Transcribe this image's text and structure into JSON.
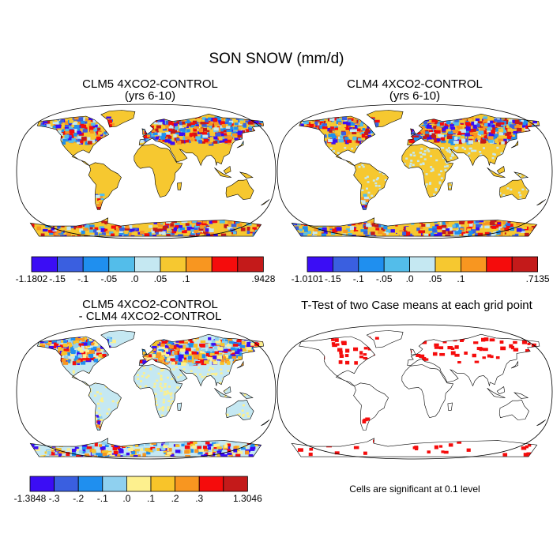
{
  "figure": {
    "title": "SON SNOW (mm/d)"
  },
  "panels": [
    {
      "id": "clm5",
      "title_lines": [
        "CLM5 4XCO2-CONTROL",
        "(yrs 6-10)"
      ],
      "colorbar": {
        "colors": [
          "#3b0df5",
          "#3a5fe0",
          "#1f8fef",
          "#53bdea",
          "#c5e8f2",
          "#f6c830",
          "#f89620",
          "#f50c0c",
          "#c41a1a"
        ],
        "labels": [
          "-1.1802",
          "-.15",
          "-.1",
          "-.05",
          ".0",
          ".05",
          ".1",
          ".9428"
        ]
      }
    },
    {
      "id": "clm4",
      "title_lines": [
        "CLM4 4XCO2-CONTROL",
        "(yrs 6-10)"
      ],
      "colorbar": {
        "colors": [
          "#3b0df5",
          "#3a5fe0",
          "#1f8fef",
          "#53bdea",
          "#c5e8f2",
          "#f6c830",
          "#f89620",
          "#f50c0c",
          "#c41a1a"
        ],
        "labels": [
          "-1.0101",
          "-.15",
          "-.1",
          "-.05",
          ".0",
          ".05",
          ".1",
          ".7135"
        ]
      }
    },
    {
      "id": "diff",
      "title_lines": [
        "CLM5 4XCO2-CONTROL",
        "- CLM4 4XCO2-CONTROL"
      ],
      "colorbar": {
        "colors": [
          "#3b0df5",
          "#3a5fe0",
          "#1f8fef",
          "#8fd0ef",
          "#fdf08e",
          "#f8c42a",
          "#f89620",
          "#f50c0c",
          "#c41a1a"
        ],
        "labels": [
          "-1.3848",
          "-.3",
          "-.2",
          "-.1",
          ".0",
          ".1",
          ".2",
          ".3",
          "1.3046"
        ]
      }
    },
    {
      "id": "ttest",
      "title_lines": [
        "T-Test of two Case means at each grid point"
      ],
      "footnote": "Cells are significant at 0.1 level"
    }
  ]
}
